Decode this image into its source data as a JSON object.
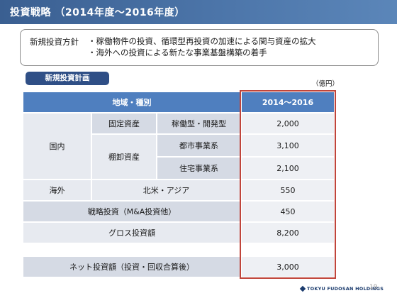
{
  "header": {
    "title": "投資戦略 （2014年度～2016年度）"
  },
  "policy": {
    "label": "新規投資方針",
    "items": [
      "・稼働物件の投資、循環型再投資の加速による関与資産の拡大",
      "・海外への投資による新たな事業基盤構築の着手"
    ]
  },
  "plan": {
    "heading": "新規投資計画",
    "unit": "（億円）"
  },
  "table": {
    "header_region": "地域・種別",
    "header_period": "2014～2016",
    "domestic": "国内",
    "fixed_assets": "固定資産",
    "operating": "稼働型・開発型",
    "inventory": "棚卸資産",
    "urban": "都市事業系",
    "residential": "住宅事業系",
    "overseas": "海外",
    "na_asia": "北米・アジア",
    "strategic": "戦略投資（M&A投資他）",
    "gross": "グロス投資額",
    "net": "ネット投資額（投資・回収合算後）",
    "values": {
      "operating": "2,000",
      "urban": "3,100",
      "residential": "2,100",
      "na_asia": "550",
      "strategic": "450",
      "gross": "8,200",
      "net": "3,000"
    }
  },
  "footer": {
    "company": "TOKYU FUDOSAN HOLDINGS",
    "page": "19"
  }
}
